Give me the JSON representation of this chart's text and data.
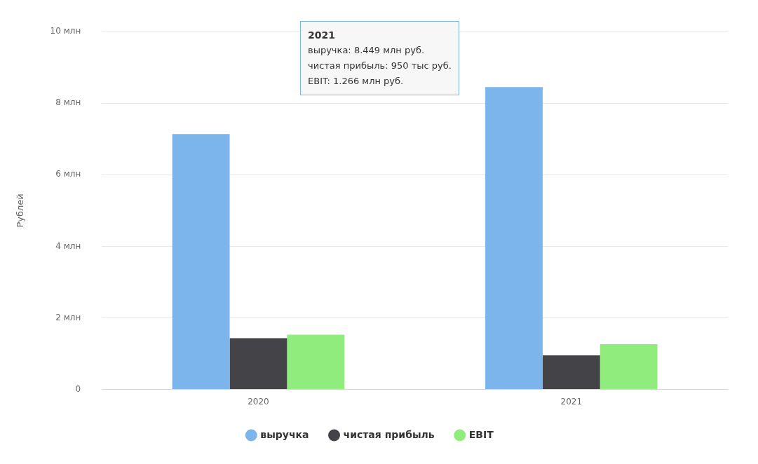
{
  "chart_data": {
    "type": "bar",
    "ylabel": "Рублей",
    "categories": [
      "2020",
      "2021"
    ],
    "series": [
      {
        "name": "выручка",
        "color": "#7cb5ec",
        "values": [
          7.14,
          8.449
        ]
      },
      {
        "name": "чистая прибыль",
        "color": "#434348",
        "values": [
          1.43,
          0.95
        ]
      },
      {
        "name": "EBIT",
        "color": "#90ed7d",
        "values": [
          1.53,
          1.266
        ]
      }
    ],
    "ylim": [
      0,
      10
    ],
    "yticks": [
      0,
      {
        "value": 2,
        "label": "2 млн"
      },
      {
        "value": 4,
        "label": "4 млн"
      },
      {
        "value": 6,
        "label": "6 млн"
      },
      {
        "value": 8,
        "label": "8 млн"
      },
      {
        "value": 10,
        "label": "10 млн"
      }
    ],
    "grid": "y",
    "legend": "bottom",
    "annotations": [
      "2021",
      "выручка: 8.449 млн руб.",
      "чистая прибыль: 950 тыс руб.",
      "EBIT: 1.266 млн руб."
    ]
  }
}
